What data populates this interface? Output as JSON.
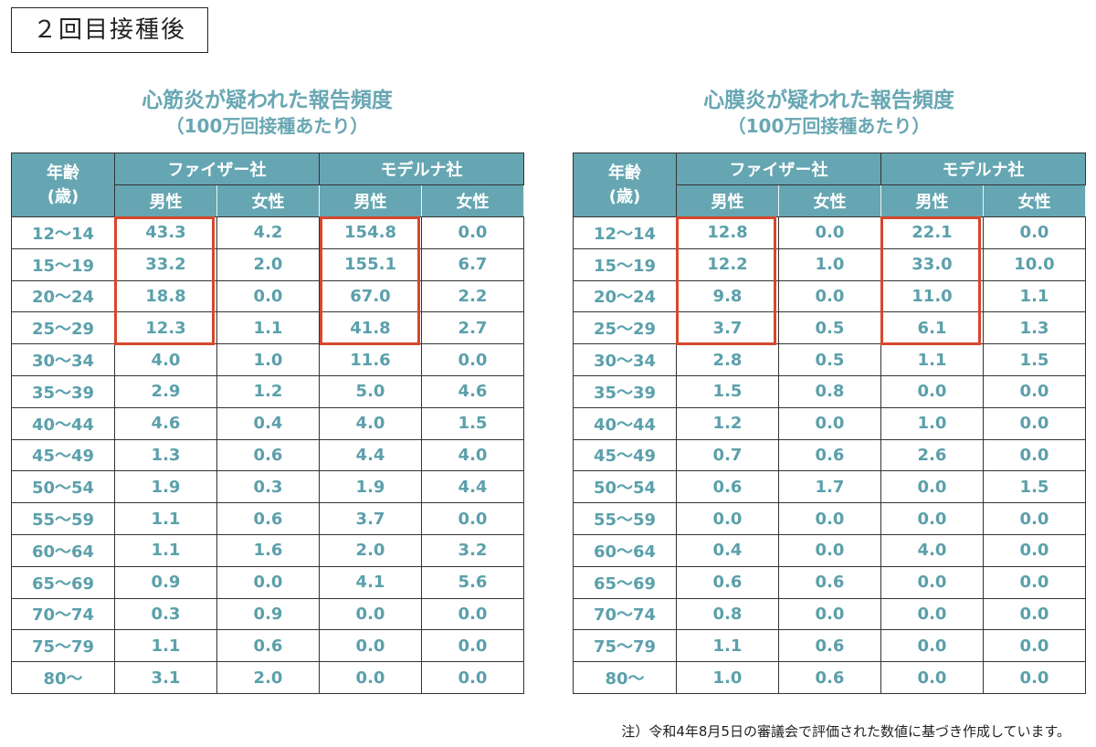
{
  "badge": "２回目接種後",
  "note": "注）令和4年8月5日の審議会で評価された数値に基づき作成しています。",
  "colors": {
    "header": "#66a6b2",
    "text": "#5ba0ab",
    "highlight": "#d6472c"
  },
  "headers": {
    "age": "年齢",
    "age_unit": "(歳)",
    "pfizer": "ファイザー社",
    "moderna": "モデルナ社",
    "male": "男性",
    "female": "女性"
  },
  "tables": [
    {
      "title": "心筋炎が疑われた報告頻度",
      "subtitle": "（100万回接種あたり）",
      "rows": [
        [
          "12〜14",
          "43.3",
          "4.2",
          "154.8",
          "0.0"
        ],
        [
          "15〜19",
          "33.2",
          "2.0",
          "155.1",
          "6.7"
        ],
        [
          "20〜24",
          "18.8",
          "0.0",
          "67.0",
          "2.2"
        ],
        [
          "25〜29",
          "12.3",
          "1.1",
          "41.8",
          "2.7"
        ],
        [
          "30〜34",
          "4.0",
          "1.0",
          "11.6",
          "0.0"
        ],
        [
          "35〜39",
          "2.9",
          "1.2",
          "5.0",
          "4.6"
        ],
        [
          "40〜44",
          "4.6",
          "0.4",
          "4.0",
          "1.5"
        ],
        [
          "45〜49",
          "1.3",
          "0.6",
          "4.4",
          "4.0"
        ],
        [
          "50〜54",
          "1.9",
          "0.3",
          "1.9",
          "4.4"
        ],
        [
          "55〜59",
          "1.1",
          "0.6",
          "3.7",
          "0.0"
        ],
        [
          "60〜64",
          "1.1",
          "1.6",
          "2.0",
          "3.2"
        ],
        [
          "65〜69",
          "0.9",
          "0.0",
          "4.1",
          "5.6"
        ],
        [
          "70〜74",
          "0.3",
          "0.9",
          "0.0",
          "0.0"
        ],
        [
          "75〜79",
          "1.1",
          "0.6",
          "0.0",
          "0.0"
        ],
        [
          "80〜",
          "3.1",
          "2.0",
          "0.0",
          "0.0"
        ]
      ]
    },
    {
      "title": "心膜炎が疑われた報告頻度",
      "subtitle": "（100万回接種あたり）",
      "rows": [
        [
          "12〜14",
          "12.8",
          "0.0",
          "22.1",
          "0.0"
        ],
        [
          "15〜19",
          "12.2",
          "1.0",
          "33.0",
          "10.0"
        ],
        [
          "20〜24",
          "9.8",
          "0.0",
          "11.0",
          "1.1"
        ],
        [
          "25〜29",
          "3.7",
          "0.5",
          "6.1",
          "1.3"
        ],
        [
          "30〜34",
          "2.8",
          "0.5",
          "1.1",
          "1.5"
        ],
        [
          "35〜39",
          "1.5",
          "0.8",
          "0.0",
          "0.0"
        ],
        [
          "40〜44",
          "1.2",
          "0.0",
          "1.0",
          "0.0"
        ],
        [
          "45〜49",
          "0.7",
          "0.6",
          "2.6",
          "0.0"
        ],
        [
          "50〜54",
          "0.6",
          "1.7",
          "0.0",
          "1.5"
        ],
        [
          "55〜59",
          "0.0",
          "0.0",
          "0.0",
          "0.0"
        ],
        [
          "60〜64",
          "0.4",
          "0.0",
          "4.0",
          "0.0"
        ],
        [
          "65〜69",
          "0.6",
          "0.6",
          "0.0",
          "0.0"
        ],
        [
          "70〜74",
          "0.8",
          "0.0",
          "0.0",
          "0.0"
        ],
        [
          "75〜79",
          "1.1",
          "0.6",
          "0.0",
          "0.0"
        ],
        [
          "80〜",
          "1.0",
          "0.6",
          "0.0",
          "0.0"
        ]
      ]
    }
  ]
}
